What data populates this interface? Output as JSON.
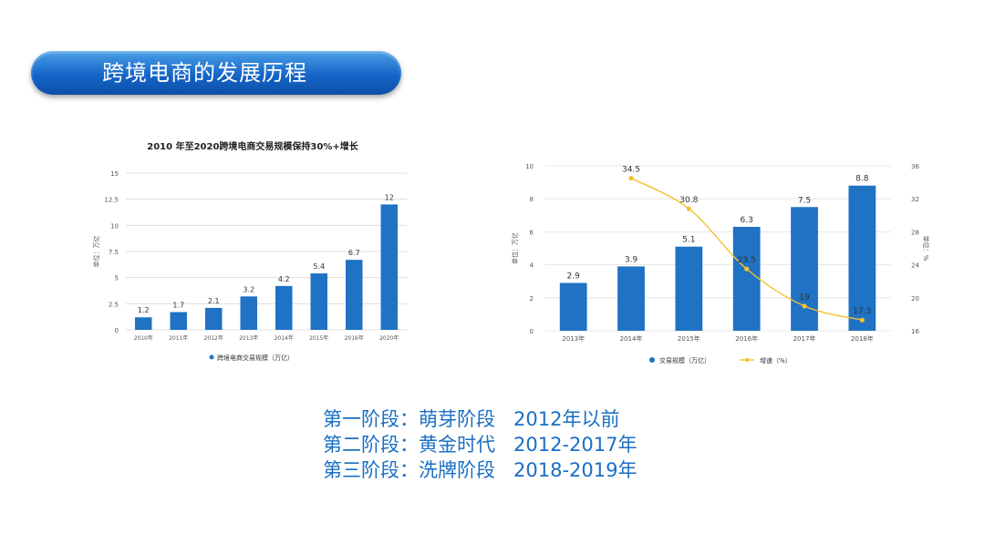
{
  "slide": {
    "title": "跨境电商的发展历程",
    "stages": [
      "第一阶段：萌芽阶段   2012年以前",
      "第二阶段：黄金时代   2012-2017年",
      "第三阶段：洗牌阶段   2018-2019年"
    ]
  },
  "colors": {
    "bar": "#1f72c4",
    "line": "#f2c12e",
    "banner": "#1565c8",
    "stage_text": "#1a6fc4"
  },
  "chart_data": [
    {
      "type": "bar",
      "title": "2010 年至2020跨境电商交易规模保持30%+增长",
      "ylabel": "单位：万亿",
      "categories": [
        "2010年",
        "2011年",
        "2012年",
        "2013年",
        "2014年",
        "2015年",
        "2016年",
        "2020年"
      ],
      "series": [
        {
          "name": "跨境电商交易规模（万亿）",
          "values": [
            1.2,
            1.7,
            2.1,
            3.2,
            4.2,
            5.4,
            6.7,
            12
          ]
        }
      ],
      "yticks": [
        "0",
        "2.5",
        "5",
        "7.5",
        "10",
        "12.5",
        "15"
      ],
      "ylim": [
        0,
        15
      ],
      "grid": true,
      "legend": "bottom"
    },
    {
      "type": "bar",
      "categories": [
        "2013年",
        "2014年",
        "2015年",
        "2016年",
        "2017年",
        "2018年"
      ],
      "series": [
        {
          "name": "交易规模（万亿）",
          "type": "bar",
          "values": [
            2.9,
            3.9,
            5.1,
            6.3,
            7.5,
            8.8
          ]
        },
        {
          "name": "增速（%）",
          "type": "line",
          "axis": "right",
          "values": [
            null,
            34.5,
            30.8,
            23.5,
            19,
            17.3
          ]
        }
      ],
      "point_labels": [
        "",
        "34.5",
        "30.8",
        "23.5",
        "19",
        "17.3"
      ],
      "ylabel": "单位：万亿",
      "y2label": "单位：%",
      "yticks": [
        "0",
        "2",
        "4",
        "6",
        "8",
        "10"
      ],
      "y2ticks": [
        "16",
        "20",
        "24",
        "28",
        "32",
        "36"
      ],
      "ylim": [
        0,
        10
      ],
      "y2lim": [
        16,
        36
      ],
      "grid": true,
      "legend": "bottom"
    }
  ]
}
